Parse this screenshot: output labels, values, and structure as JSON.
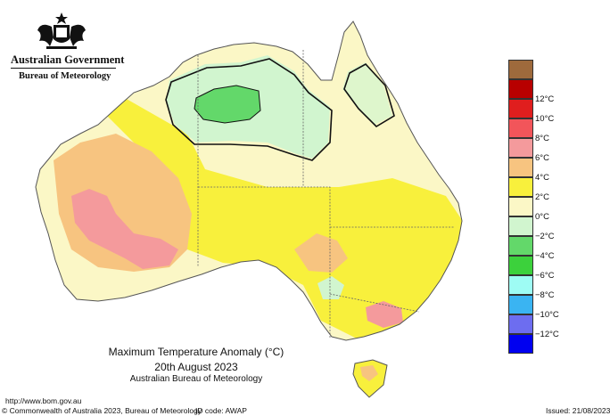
{
  "header": {
    "government": "Australian Government",
    "bureau": "Bureau of Meteorology"
  },
  "caption": {
    "line1": "Maximum Temperature Anomaly (°C)",
    "line2": "20th August 2023",
    "line3": "Australian Bureau of Meteorology"
  },
  "footer": {
    "url": "http://www.bom.gov.au",
    "copyright": "© Commonwealth of Australia 2023, Bureau of Meteorology",
    "id_code": "ID code: AWAP",
    "issued": "Issued: 21/08/2023"
  },
  "legend": [
    {
      "label": "",
      "color": "#9e6a3c"
    },
    {
      "label": "12°C",
      "color": "#b80000"
    },
    {
      "label": "10°C",
      "color": "#e01e1e"
    },
    {
      "label": "8°C",
      "color": "#f2555a"
    },
    {
      "label": "6°C",
      "color": "#f49a9c"
    },
    {
      "label": "4°C",
      "color": "#f7c480"
    },
    {
      "label": "2°C",
      "color": "#f8f03c"
    },
    {
      "label": "0°C",
      "color": "#fbf7c6"
    },
    {
      "label": "−2°C",
      "color": "#d1f5cf"
    },
    {
      "label": "−4°C",
      "color": "#63d86a"
    },
    {
      "label": "−6°C",
      "color": "#3cd13c"
    },
    {
      "label": "−8°C",
      "color": "#9efcf4"
    },
    {
      "label": "−10°C",
      "color": "#3ab4f2"
    },
    {
      "label": "−12°C",
      "color": "#6d6df0"
    },
    {
      "label": "",
      "color": "#0000f0"
    }
  ]
}
